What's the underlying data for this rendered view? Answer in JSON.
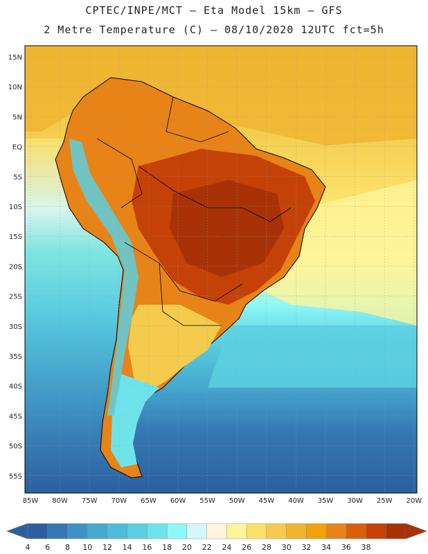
{
  "title": {
    "line1": "CPTEC/INPE/MCT –  Eta Model 15km – GFS",
    "line2": "2 Metre Temperature (C) – 08/10/2020 12UTC fct=5h"
  },
  "lat_labels": [
    "15N",
    "10N",
    "5N",
    "EQ",
    "5S",
    "10S",
    "15S",
    "20S",
    "25S",
    "30S",
    "35S",
    "40S",
    "45S",
    "50S",
    "55S"
  ],
  "lon_labels": [
    "85W",
    "80W",
    "75W",
    "70W",
    "65W",
    "60W",
    "55W",
    "50W",
    "45W",
    "40W",
    "35W",
    "30W",
    "25W",
    "20W"
  ],
  "colorbar": {
    "labels": [
      "4",
      "6",
      "8",
      "10",
      "12",
      "14",
      "16",
      "18",
      "20",
      "22",
      "24",
      "26",
      "28",
      "30",
      "32",
      "34",
      "36",
      "38"
    ],
    "colors": [
      "#2c5fa0",
      "#3678b4",
      "#3f93c4",
      "#46a9cf",
      "#4fbcd8",
      "#5cd0e0",
      "#6ee4ea",
      "#8ef8f8",
      "#d4f7f9",
      "#fdf6dd",
      "#fef49a",
      "#fbe06a",
      "#f4cb4c",
      "#efb531",
      "#f0a10c",
      "#e78317",
      "#d95f0b",
      "#c44107",
      "#a83206"
    ]
  },
  "colors": {
    "ocean_south": "#2c5fa0",
    "ocean_mid": "#4fbcd8",
    "ocean_warm": "#fbe06a",
    "land_hot": "#c44107",
    "land_warm": "#e78317",
    "andes": "#6ee4ea",
    "border": "#000000"
  }
}
